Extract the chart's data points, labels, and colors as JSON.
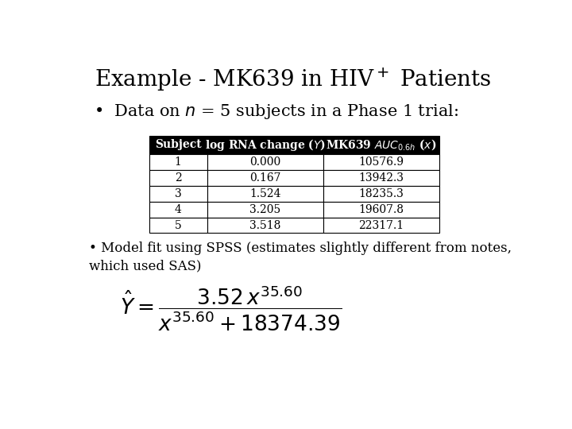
{
  "title": "Example - MK639 in HIV$^+$ Patients",
  "bullet1": "•  Data on $n$ = 5 subjects in a Phase 1 trial:",
  "table_header": [
    "Subject",
    "log RNA change ($Y$)",
    "MK639 $AUC_{0.6h}$ ($x$)"
  ],
  "table_rows": [
    [
      "1",
      "0.000",
      "10576.9"
    ],
    [
      "2",
      "0.167",
      "13942.3"
    ],
    [
      "3",
      "1.524",
      "18235.3"
    ],
    [
      "4",
      "3.205",
      "19607.8"
    ],
    [
      "5",
      "3.518",
      "22317.1"
    ]
  ],
  "bullet2": "• Model fit using SPSS (estimates slightly different from notes,\nwhich used SAS)",
  "bg_color": "#ffffff",
  "header_bg": "#000000",
  "header_fg": "#ffffff",
  "row_bg": "#ffffff",
  "row_fg": "#000000",
  "title_fontsize": 20,
  "bullet_fontsize": 15,
  "table_fontsize": 10,
  "bullet2_fontsize": 12,
  "formula_fontsize": 19
}
